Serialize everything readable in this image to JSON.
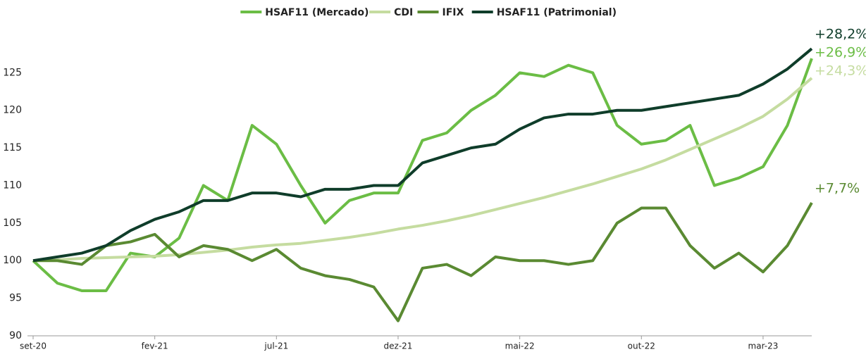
{
  "chart_data": {
    "type": "line",
    "categories": [
      "set-20",
      null,
      null,
      null,
      null,
      "fev-21",
      null,
      null,
      null,
      null,
      "jul-21",
      null,
      null,
      null,
      null,
      "dez-21",
      null,
      null,
      null,
      null,
      "mai-22",
      null,
      null,
      null,
      null,
      "out-22",
      null,
      null,
      null,
      null,
      "mar-23",
      null,
      null
    ],
    "series": [
      {
        "name": "HSAF11 (Mercado)",
        "color": "#6bbd45",
        "end_label": "+26,9%",
        "values": [
          100,
          97,
          96,
          96,
          101,
          100.5,
          103,
          110,
          108,
          118,
          115.5,
          110,
          105,
          108,
          109,
          109,
          116,
          117,
          120,
          122,
          125,
          124.5,
          126,
          125,
          118,
          115.5,
          116,
          118,
          110,
          111,
          112.5,
          118,
          126.9
        ]
      },
      {
        "name": "CDI",
        "color": "#c5dca0",
        "end_label": "+24,3%",
        "values": [
          100,
          100.1,
          100.3,
          100.4,
          100.5,
          100.6,
          100.8,
          101.1,
          101.4,
          101.8,
          102.1,
          102.3,
          102.7,
          103.1,
          103.6,
          104.2,
          104.7,
          105.3,
          106,
          106.8,
          107.6,
          108.4,
          109.3,
          110.2,
          111.2,
          112.2,
          113.4,
          114.8,
          116.2,
          117.6,
          119.2,
          121.5,
          124.3
        ]
      },
      {
        "name": "IFIX",
        "color": "#5a8a32",
        "end_label": "+7,7%",
        "values": [
          100,
          100,
          99.5,
          102,
          102.5,
          103.5,
          100.5,
          102,
          101.5,
          100,
          101.5,
          99,
          98,
          97.5,
          96.5,
          92,
          99,
          99.5,
          98,
          100.5,
          100,
          100,
          99.5,
          100,
          105,
          107,
          107,
          102,
          99,
          101,
          98.5,
          102,
          107.7
        ]
      },
      {
        "name": "HSAF11 (Patrimonial)",
        "color": "#0f3d2a",
        "end_label": "+28,2%",
        "values": [
          100,
          100.5,
          101,
          102,
          104,
          105.5,
          106.5,
          108,
          108,
          109,
          109,
          108.5,
          109.5,
          109.5,
          110,
          110,
          113,
          114,
          115,
          115.5,
          117.5,
          119,
          119.5,
          119.5,
          120,
          120,
          120.5,
          121,
          121.5,
          122,
          123.5,
          125.5,
          128.2
        ]
      }
    ],
    "ylim": [
      90,
      128.5
    ],
    "yticks": [
      90,
      95,
      100,
      105,
      110,
      115,
      120,
      125
    ]
  }
}
